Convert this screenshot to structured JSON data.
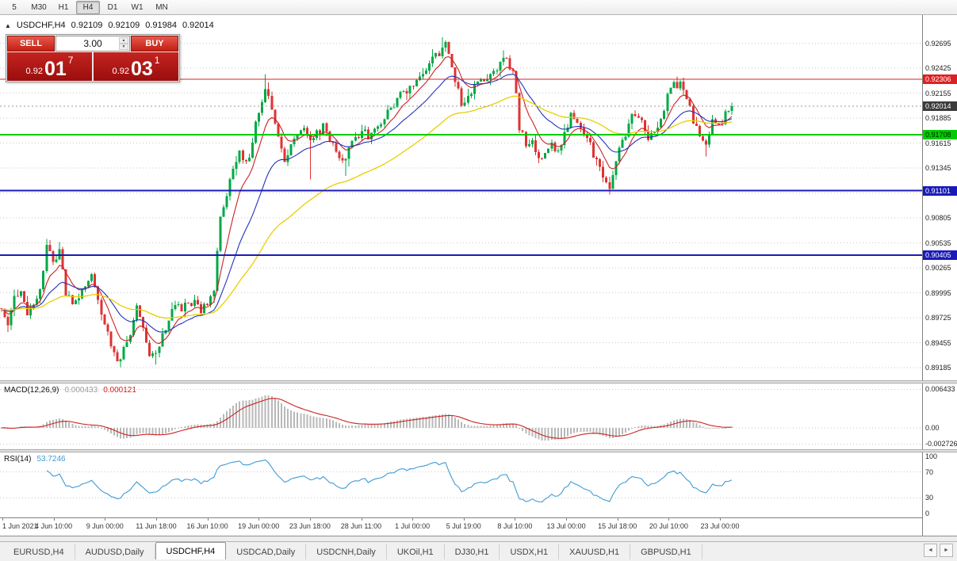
{
  "toolbar": {
    "timeframes": [
      {
        "label": "5",
        "active": false
      },
      {
        "label": "M30",
        "active": false
      },
      {
        "label": "H1",
        "active": false
      },
      {
        "label": "H4",
        "active": true
      },
      {
        "label": "D1",
        "active": false
      },
      {
        "label": "W1",
        "active": false
      },
      {
        "label": "MN",
        "active": false
      }
    ]
  },
  "chart_title": {
    "toggle_icon": "▲",
    "symbol": "USDCHF,H4",
    "open": "0.92109",
    "high": "0.92109",
    "low": "0.91984",
    "close": "0.92014"
  },
  "trade_panel": {
    "sell_label": "SELL",
    "buy_label": "BUY",
    "volume": "3.00",
    "spin_up_icon": "▲",
    "spin_down_icon": "▼",
    "sell_price_prefix": "0.92",
    "sell_price_big": "01",
    "sell_price_sup": "7",
    "buy_price_prefix": "0.92",
    "buy_price_big": "03",
    "buy_price_sup": "1"
  },
  "chart_data": {
    "type": "candlestick",
    "symbol": "USDCHF",
    "timeframe": "H4",
    "bars": 228,
    "data_width": 925,
    "noise_seed": 97531,
    "noise": 0.001,
    "wick": 0.0009,
    "price_top": 0.93,
    "price_bottom": 0.8905,
    "up_color": "#00a846",
    "down_color": "#dd3333",
    "price_axis_labels": [
      "0.92695",
      "0.92425",
      "0.92155",
      "0.91885",
      "0.91615",
      "0.91345",
      "0.91075",
      "0.90805",
      "0.90535",
      "0.90265",
      "0.89995",
      "0.89725",
      "0.89455",
      "0.89185"
    ],
    "waypoints": [
      [
        0,
        0.8985
      ],
      [
        2,
        0.8962
      ],
      [
        4,
        0.8995
      ],
      [
        6,
        0.9005
      ],
      [
        8,
        0.8975
      ],
      [
        10,
        0.8988
      ],
      [
        12,
        0.9
      ],
      [
        14,
        0.9048
      ],
      [
        16,
        0.9032
      ],
      [
        18,
        0.9046
      ],
      [
        20,
        0.9
      ],
      [
        22,
        0.8986
      ],
      [
        24,
        0.8996
      ],
      [
        26,
        0.9008
      ],
      [
        28,
        0.9018
      ],
      [
        30,
        0.899
      ],
      [
        32,
        0.897
      ],
      [
        34,
        0.8942
      ],
      [
        36,
        0.8926
      ],
      [
        38,
        0.8938
      ],
      [
        40,
        0.8952
      ],
      [
        42,
        0.8985
      ],
      [
        44,
        0.8962
      ],
      [
        46,
        0.8934
      ],
      [
        48,
        0.893
      ],
      [
        50,
        0.8955
      ],
      [
        52,
        0.8972
      ],
      [
        54,
        0.8986
      ],
      [
        56,
        0.8982
      ],
      [
        58,
        0.8988
      ],
      [
        60,
        0.8992
      ],
      [
        62,
        0.8982
      ],
      [
        64,
        0.8985
      ],
      [
        66,
        0.9002
      ],
      [
        68,
        0.9078
      ],
      [
        70,
        0.9105
      ],
      [
        72,
        0.913
      ],
      [
        74,
        0.9152
      ],
      [
        76,
        0.9138
      ],
      [
        78,
        0.9162
      ],
      [
        80,
        0.9198
      ],
      [
        82,
        0.9222
      ],
      [
        84,
        0.9198
      ],
      [
        86,
        0.9168
      ],
      [
        88,
        0.9138
      ],
      [
        90,
        0.9162
      ],
      [
        92,
        0.9174
      ],
      [
        94,
        0.918
      ],
      [
        96,
        0.9168
      ],
      [
        98,
        0.9172
      ],
      [
        100,
        0.918
      ],
      [
        102,
        0.9163
      ],
      [
        104,
        0.9155
      ],
      [
        106,
        0.9138
      ],
      [
        108,
        0.9158
      ],
      [
        110,
        0.9168
      ],
      [
        112,
        0.9175
      ],
      [
        114,
        0.9168
      ],
      [
        116,
        0.9174
      ],
      [
        118,
        0.9182
      ],
      [
        120,
        0.9198
      ],
      [
        122,
        0.9205
      ],
      [
        124,
        0.9212
      ],
      [
        126,
        0.9218
      ],
      [
        128,
        0.9226
      ],
      [
        130,
        0.9236
      ],
      [
        132,
        0.9244
      ],
      [
        134,
        0.9252
      ],
      [
        136,
        0.926
      ],
      [
        138,
        0.9268
      ],
      [
        139,
        0.9255
      ],
      [
        141,
        0.923
      ],
      [
        143,
        0.9202
      ],
      [
        145,
        0.9208
      ],
      [
        147,
        0.9222
      ],
      [
        149,
        0.9235
      ],
      [
        151,
        0.9228
      ],
      [
        153,
        0.9236
      ],
      [
        155,
        0.9248
      ],
      [
        157,
        0.9252
      ],
      [
        159,
        0.924
      ],
      [
        160,
        0.922
      ],
      [
        161,
        0.918
      ],
      [
        163,
        0.9158
      ],
      [
        165,
        0.9168
      ],
      [
        167,
        0.9142
      ],
      [
        169,
        0.9152
      ],
      [
        171,
        0.916
      ],
      [
        173,
        0.915
      ],
      [
        175,
        0.9172
      ],
      [
        177,
        0.919
      ],
      [
        179,
        0.9184
      ],
      [
        181,
        0.9172
      ],
      [
        183,
        0.9158
      ],
      [
        185,
        0.914
      ],
      [
        187,
        0.9128
      ],
      [
        189,
        0.9116
      ],
      [
        191,
        0.9142
      ],
      [
        193,
        0.9162
      ],
      [
        195,
        0.9184
      ],
      [
        197,
        0.9192
      ],
      [
        199,
        0.9184
      ],
      [
        201,
        0.917
      ],
      [
        203,
        0.9172
      ],
      [
        205,
        0.919
      ],
      [
        207,
        0.921
      ],
      [
        209,
        0.9224
      ],
      [
        211,
        0.9224
      ],
      [
        213,
        0.921
      ],
      [
        215,
        0.9186
      ],
      [
        217,
        0.9166
      ],
      [
        219,
        0.9158
      ],
      [
        221,
        0.919
      ],
      [
        223,
        0.9178
      ],
      [
        225,
        0.9192
      ],
      [
        227,
        0.92014
      ]
    ],
    "spikes": [
      {
        "bar": 14,
        "high": 0.9058
      },
      {
        "bar": 37,
        "low": 0.8919
      },
      {
        "bar": 48,
        "low": 0.8922
      },
      {
        "bar": 82,
        "high": 0.9236
      },
      {
        "bar": 96,
        "low": 0.9122
      },
      {
        "bar": 107,
        "low": 0.9126
      },
      {
        "bar": 137,
        "high": 0.9276
      },
      {
        "bar": 156,
        "high": 0.9262
      },
      {
        "bar": 189,
        "low": 0.9106
      },
      {
        "bar": 210,
        "high": 0.9231
      },
      {
        "bar": 219,
        "low": 0.9147
      }
    ],
    "hlines": [
      {
        "price": 0.92306,
        "label": "0.92306",
        "color": "#dd2020",
        "width": 1,
        "text_color": "#ffffff"
      },
      {
        "price": 0.91708,
        "label": "0.91708",
        "color": "#00cc00",
        "width": 2,
        "text_color": "#002200"
      },
      {
        "price": 0.91101,
        "label": "0.91101",
        "color": "#1a1ab8",
        "width": 2,
        "text_color": "#ffffff"
      },
      {
        "price": 0.90405,
        "label": "0.90405",
        "color": "#1a1ab8",
        "width": 2,
        "text_color": "#ffffff"
      }
    ],
    "current_price": {
      "value": 0.92014,
      "label": "0.92014",
      "badge_color": "#3c3c3c",
      "text_color": "#ffffff"
    },
    "moving_averages": [
      {
        "name": "fast",
        "period": 8,
        "color": "#cc2222",
        "width": 1.1
      },
      {
        "name": "medium",
        "period": 21,
        "color": "#2233bb",
        "width": 1.1
      },
      {
        "name": "slow",
        "period": 55,
        "color": "#e8cf00",
        "width": 1.3
      }
    ],
    "time_labels": [
      "1 Jun 2021",
      "4 Jun 10:00",
      "9 Jun 00:00",
      "11 Jun 18:00",
      "16 Jun 10:00",
      "19 Jun 00:00",
      "23 Jun 18:00",
      "28 Jun 11:00",
      "1 Jul 00:00",
      "5 Jul 19:00",
      "8 Jul 10:00",
      "13 Jul 00:00",
      "15 Jul 18:00",
      "20 Jul 10:00",
      "23 Jul 00:00"
    ],
    "macd": {
      "title": "MACD(12,26,9)",
      "value_main": "0.000433",
      "value_signal": "0.000121",
      "fast": 12,
      "slow": 26,
      "signal": 9,
      "hist_color": "#b8b8b8",
      "signal_color": "#cc2222",
      "scale_top": 0.0074,
      "scale_bottom": -0.0036,
      "axis": [
        {
          "label": "0.006433",
          "value": 0.006433,
          "line": true
        },
        {
          "label": "0.00",
          "value": 0,
          "line": true
        },
        {
          "label": "-0.002726",
          "value": -0.002726,
          "line": true
        }
      ]
    },
    "rsi": {
      "title": "RSI(14)",
      "value": "53.7246",
      "period": 14,
      "color": "#3f9bd5",
      "axis": [
        {
          "label": "100",
          "value": 100,
          "line": false
        },
        {
          "label": "70",
          "value": 70,
          "line": true
        },
        {
          "label": "30",
          "value": 30,
          "line": true
        },
        {
          "label": "0",
          "value": 0,
          "line": false
        }
      ]
    }
  },
  "tabs": {
    "scroll_left_icon": "◄",
    "scroll_right_icon": "►",
    "items": [
      {
        "label": "EURUSD,H4",
        "active": false
      },
      {
        "label": "AUDUSD,Daily",
        "active": false
      },
      {
        "label": "USDCHF,H4",
        "active": true
      },
      {
        "label": "USDCAD,Daily",
        "active": false
      },
      {
        "label": "USDCNH,Daily",
        "active": false
      },
      {
        "label": "UKOil,H1",
        "active": false
      },
      {
        "label": "DJ30,H1",
        "active": false
      },
      {
        "label": "USDX,H1",
        "active": false
      },
      {
        "label": "XAUUSD,H1",
        "active": false
      },
      {
        "label": "GBPUSD,H1",
        "active": false
      }
    ]
  }
}
